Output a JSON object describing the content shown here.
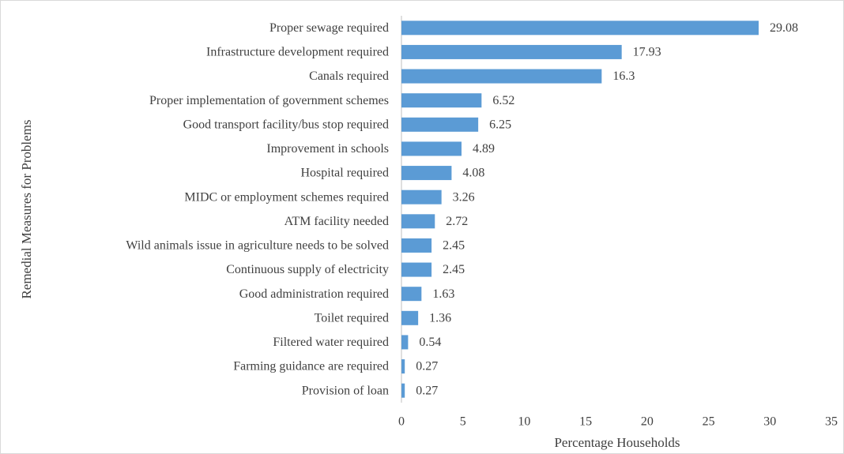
{
  "chart_data": {
    "type": "barh",
    "xlabel": "Percentage Households",
    "ylabel": "Remedial Measures for Problems",
    "categories": [
      "Proper sewage required",
      "Infrastructure development required",
      "Canals required",
      "Proper implementation of government schemes",
      "Good transport facility/bus stop required",
      "Improvement in schools",
      "Hospital required",
      "MIDC or employment schemes required",
      "ATM facility needed",
      "Wild animals issue in agriculture needs to be solved",
      "Continuous supply of electricity",
      "Good administration required",
      "Toilet required",
      "Filtered water required",
      "Farming guidance are required",
      "Provision of loan"
    ],
    "values": [
      29.08,
      17.93,
      16.3,
      6.52,
      6.25,
      4.89,
      4.08,
      3.26,
      2.72,
      2.45,
      2.45,
      1.63,
      1.36,
      0.54,
      0.27,
      0.27
    ],
    "color": "#5b9bd5",
    "xlim": [
      0,
      35
    ],
    "xticks": [
      0,
      5,
      10,
      15,
      20,
      25,
      30,
      35
    ],
    "grid": false
  }
}
